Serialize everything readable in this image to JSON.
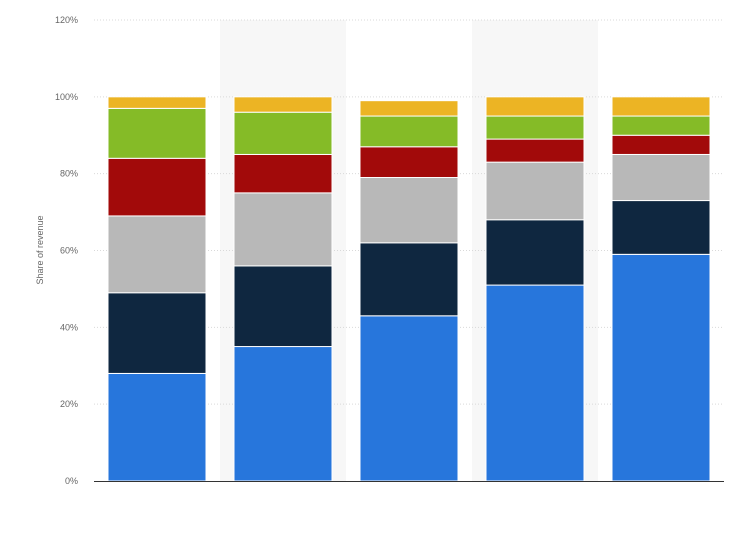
{
  "chart_data": {
    "type": "bar",
    "stacked": true,
    "title": "",
    "xlabel": "",
    "ylabel": "Share of revenue",
    "ylim": [
      0,
      120
    ],
    "yticks": [
      0,
      20,
      40,
      60,
      80,
      100,
      120
    ],
    "ytick_suffix": "%",
    "grid": true,
    "legend": "none",
    "categories": [
      "",
      "",
      "",
      "",
      ""
    ],
    "series": [
      {
        "color": "#2776dc",
        "values": [
          28,
          35,
          43,
          51,
          59
        ]
      },
      {
        "color": "#0f2740",
        "values": [
          21,
          21,
          19,
          17,
          14
        ]
      },
      {
        "color": "#b8b8b8",
        "values": [
          20,
          19,
          17,
          15,
          12
        ]
      },
      {
        "color": "#a20a0a",
        "values": [
          15,
          10,
          8,
          6,
          5
        ]
      },
      {
        "color": "#85bb27",
        "values": [
          13,
          11,
          8,
          6,
          5
        ]
      },
      {
        "color": "#ecb424",
        "values": [
          3,
          4,
          4,
          5,
          5
        ]
      }
    ]
  }
}
